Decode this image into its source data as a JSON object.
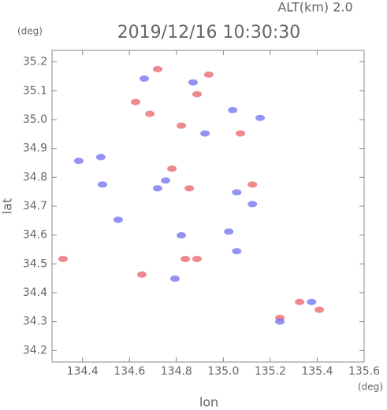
{
  "chart_data": {
    "type": "scatter",
    "header": "ALT(km) 2.0",
    "y_unit": "(deg)",
    "title": "2019/12/16 10:30:30",
    "y_label": "lat",
    "x_label": "lon",
    "x_unit": "(deg)",
    "xlim": [
      134.27,
      135.6
    ],
    "ylim": [
      34.16,
      35.24
    ],
    "xticks": [
      134.4,
      134.6,
      134.8,
      {
        "value": 135.0,
        "label": "135.0"
      },
      135.2,
      135.4,
      135.6
    ],
    "yticks": [
      34.2,
      34.3,
      34.4,
      34.5,
      34.6,
      34.7,
      34.8,
      34.9,
      {
        "value": 35.0,
        "label": "35.0"
      },
      35.1,
      35.2
    ],
    "series": [
      {
        "color": "#e8616a",
        "x": [
          134.317,
          134.626,
          134.687,
          134.821,
          135.073,
          134.888,
          134.781,
          134.855,
          135.124,
          134.888,
          134.838,
          135.325,
          135.241,
          135.409,
          134.653,
          134.938,
          134.72
        ],
        "y": [
          34.517,
          35.061,
          35.02,
          34.979,
          34.952,
          35.088,
          34.83,
          34.762,
          34.775,
          34.517,
          34.517,
          34.368,
          34.313,
          34.341,
          34.463,
          35.156,
          35.175
        ]
      },
      {
        "color": "#6f6ff0",
        "x": [
          134.663,
          134.871,
          135.04,
          135.157,
          134.72,
          134.485,
          134.754,
          135.057,
          135.124,
          135.023,
          134.821,
          135.057,
          134.794,
          135.241,
          135.376,
          134.922,
          134.384,
          134.478,
          134.552
        ],
        "y": [
          35.142,
          35.129,
          35.033,
          35.006,
          34.762,
          34.775,
          34.789,
          34.748,
          34.707,
          34.612,
          34.599,
          34.544,
          34.449,
          34.3,
          34.368,
          34.952,
          34.857,
          34.87,
          34.653
        ]
      }
    ]
  }
}
